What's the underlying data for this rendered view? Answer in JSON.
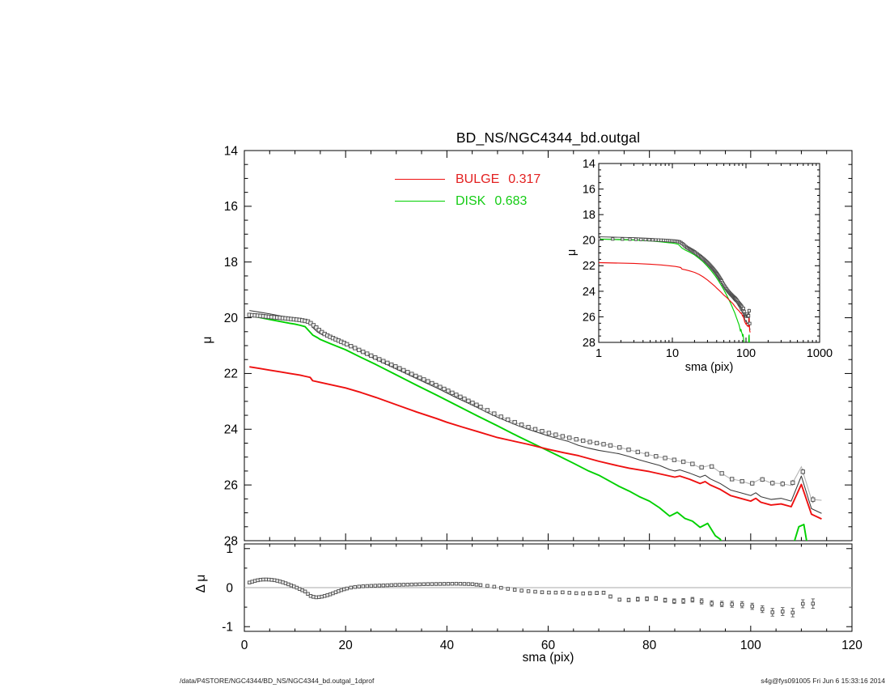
{
  "footer": {
    "left": "/data/P4STORE/NGC4344/BD_NS/NGC4344_bd.outgal_1dprof",
    "right": "s4g@fys091005  Fri Jun  6 15:33:16 2014"
  },
  "colors": {
    "bulge": "#ee1010",
    "disk": "#00d000",
    "total": "#3a3a3a",
    "marker_stroke": "#4d4d4d",
    "marker_fill": "#ececec",
    "data_line": "#b5b5b5",
    "zero_line": "#a8a8a8",
    "axis": "#000000"
  },
  "series": {
    "observed": {
      "sma": [
        1,
        3,
        5,
        7,
        9,
        11,
        12.5,
        13,
        14,
        15,
        16,
        17,
        18,
        19,
        20,
        22,
        24,
        26,
        28,
        30,
        32,
        34,
        36,
        38,
        40,
        42,
        44,
        46,
        48,
        50,
        52,
        54,
        56,
        58,
        60,
        62,
        64,
        66,
        68,
        70,
        72,
        74,
        76,
        78,
        80,
        82,
        84,
        86,
        88,
        90,
        92,
        94,
        96,
        98,
        100,
        102,
        104,
        106,
        108,
        110,
        112,
        114
      ],
      "mu": [
        19.9,
        19.93,
        19.97,
        20.0,
        20.04,
        20.08,
        20.13,
        20.18,
        20.32,
        20.48,
        20.6,
        20.69,
        20.77,
        20.85,
        20.93,
        21.1,
        21.27,
        21.44,
        21.6,
        21.76,
        21.93,
        22.1,
        22.26,
        22.43,
        22.6,
        22.78,
        22.96,
        23.14,
        23.32,
        23.5,
        23.65,
        23.79,
        23.92,
        24.03,
        24.13,
        24.22,
        24.3,
        24.38,
        24.45,
        24.51,
        24.57,
        24.65,
        24.74,
        24.83,
        24.92,
        25.0,
        25.06,
        25.15,
        25.2,
        25.38,
        25.3,
        25.55,
        25.78,
        25.85,
        25.97,
        25.78,
        25.93,
        25.95,
        26.02,
        25.35,
        26.52,
        26.55
      ]
    },
    "observed_err": {
      "sma": [
        92,
        96,
        100,
        104,
        108,
        110,
        112,
        114
      ],
      "err": [
        0.05,
        0.06,
        0.08,
        0.09,
        0.1,
        0.1,
        0.12,
        0.13
      ]
    },
    "total_model": {
      "sma": [
        1,
        3,
        5,
        7,
        9,
        11,
        12,
        13,
        13.5,
        14.5,
        15.5,
        17,
        18,
        20,
        22,
        24,
        26,
        28,
        30,
        32,
        34,
        36,
        38,
        40,
        42,
        44,
        46,
        48,
        50,
        52,
        54,
        56,
        58,
        60,
        62,
        64,
        66,
        68,
        70,
        72,
        74,
        76,
        78,
        80,
        82,
        84,
        85,
        86,
        88,
        90,
        91,
        92,
        94,
        96,
        98,
        100,
        101,
        102,
        104,
        106,
        108,
        110,
        112,
        114
      ],
      "mu": [
        19.74,
        19.8,
        19.86,
        19.93,
        20.0,
        20.06,
        20.1,
        20.16,
        20.35,
        20.52,
        20.62,
        20.7,
        20.78,
        20.95,
        21.14,
        21.32,
        21.5,
        21.67,
        21.84,
        22.01,
        22.18,
        22.35,
        22.52,
        22.7,
        22.88,
        23.05,
        23.22,
        23.4,
        23.57,
        23.72,
        23.87,
        24.0,
        24.12,
        24.24,
        24.34,
        24.44,
        24.58,
        24.68,
        24.76,
        24.82,
        24.88,
        24.98,
        25.1,
        25.2,
        25.3,
        25.45,
        25.5,
        25.46,
        25.58,
        25.72,
        25.65,
        25.78,
        25.95,
        26.18,
        26.28,
        26.38,
        26.28,
        26.42,
        26.52,
        26.48,
        26.58,
        25.68,
        26.85,
        27.02
      ]
    },
    "bulge": {
      "sma": [
        1,
        3,
        5,
        7,
        9,
        11,
        12,
        13,
        13.5,
        15,
        17,
        20,
        23,
        26,
        30,
        34,
        38,
        40,
        43,
        46,
        50,
        53,
        56,
        60,
        63,
        66,
        70,
        73,
        76,
        80,
        82,
        84,
        85,
        86,
        88,
        90,
        91,
        92,
        94,
        96,
        98,
        100,
        101,
        102,
        104,
        106,
        108,
        110,
        112,
        114
      ],
      "mu": [
        21.76,
        21.82,
        21.88,
        21.94,
        22.0,
        22.06,
        22.1,
        22.14,
        22.26,
        22.32,
        22.4,
        22.52,
        22.68,
        22.86,
        23.12,
        23.38,
        23.62,
        23.75,
        23.92,
        24.08,
        24.3,
        24.42,
        24.54,
        24.72,
        24.84,
        24.95,
        25.15,
        25.28,
        25.4,
        25.52,
        25.6,
        25.68,
        25.72,
        25.68,
        25.8,
        25.95,
        25.88,
        26.0,
        26.16,
        26.38,
        26.48,
        26.58,
        26.48,
        26.62,
        26.72,
        26.68,
        26.78,
        25.98,
        27.05,
        27.22
      ]
    },
    "disk": {
      "sma": [
        1,
        3,
        5,
        7,
        9,
        10,
        11,
        12,
        12.5,
        13.5,
        14.5,
        15,
        17,
        20,
        23,
        26,
        30,
        34,
        38,
        42,
        46,
        50,
        54,
        58,
        62,
        65,
        68,
        70,
        72,
        74,
        76,
        78,
        80,
        82,
        84,
        85.5,
        87,
        88.5,
        90,
        91.5,
        93,
        94,
        96,
        98,
        100,
        103,
        106,
        108,
        109.5,
        110.5,
        111.5,
        112.5,
        114
      ],
      "mu": [
        19.92,
        19.99,
        20.06,
        20.13,
        20.2,
        20.23,
        20.27,
        20.32,
        20.42,
        20.62,
        20.72,
        20.78,
        20.93,
        21.15,
        21.42,
        21.68,
        22.05,
        22.42,
        22.78,
        23.15,
        23.52,
        23.88,
        24.25,
        24.6,
        24.95,
        25.22,
        25.5,
        25.65,
        25.85,
        26.05,
        26.22,
        26.42,
        26.58,
        26.82,
        27.12,
        26.98,
        27.2,
        27.3,
        27.52,
        27.38,
        27.82,
        27.95,
        28.7,
        29.5,
        30.3,
        31.0,
        29.8,
        28.4,
        27.5,
        27.42,
        28.5,
        30.0,
        31.0
      ]
    },
    "residual": {
      "sma": [
        1,
        2,
        3,
        4,
        5,
        6,
        7,
        8,
        9,
        10,
        11,
        12,
        13,
        14,
        15,
        16,
        17,
        18,
        19,
        20,
        21,
        22,
        24,
        26,
        28,
        30,
        33,
        36,
        39,
        42,
        45,
        47,
        49,
        51,
        53,
        55,
        57,
        59,
        61,
        63,
        65,
        67,
        69,
        71,
        73,
        75,
        77,
        79,
        81,
        83,
        85,
        87,
        89,
        91,
        93,
        95,
        97,
        99,
        101,
        103,
        104.5,
        106,
        108,
        110,
        112,
        114
      ],
      "dmu": [
        0.13,
        0.17,
        0.2,
        0.21,
        0.205,
        0.19,
        0.16,
        0.12,
        0.07,
        0.02,
        -0.04,
        -0.1,
        -0.21,
        -0.25,
        -0.24,
        -0.21,
        -0.17,
        -0.12,
        -0.07,
        -0.03,
        0.0,
        0.02,
        0.04,
        0.05,
        0.06,
        0.07,
        0.08,
        0.09,
        0.095,
        0.1,
        0.09,
        0.06,
        0.03,
        -0.01,
        -0.05,
        -0.08,
        -0.1,
        -0.12,
        -0.13,
        -0.12,
        -0.14,
        -0.15,
        -0.14,
        -0.13,
        -0.28,
        -0.33,
        -0.3,
        -0.29,
        -0.27,
        -0.32,
        -0.35,
        -0.34,
        -0.3,
        -0.38,
        -0.42,
        -0.42,
        -0.43,
        -0.44,
        -0.5,
        -0.58,
        -0.64,
        -0.6,
        -0.68,
        -0.42,
        -0.38,
        -0.58
      ],
      "err": [
        0,
        0,
        0,
        0,
        0,
        0,
        0,
        0,
        0,
        0,
        0,
        0,
        0,
        0,
        0,
        0,
        0,
        0,
        0,
        0,
        0,
        0,
        0,
        0,
        0,
        0,
        0,
        0,
        0,
        0,
        0,
        0,
        0,
        0,
        0,
        0,
        0,
        0.03,
        0.03,
        0.03,
        0.03,
        0.04,
        0.04,
        0.04,
        0.04,
        0.04,
        0.05,
        0.05,
        0.05,
        0.05,
        0.06,
        0.06,
        0.06,
        0.07,
        0.07,
        0.07,
        0.08,
        0.08,
        0.08,
        0.09,
        0.1,
        0.1,
        0.11,
        0.1,
        0.12,
        0.13
      ]
    }
  },
  "chart_data": [
    {
      "id": "main",
      "type": "line+scatter",
      "title": "BD_NS/NGC4344_bd.outgal",
      "xlabel": "",
      "ylabel": "μ",
      "x_range": [
        0,
        120
      ],
      "y_range": [
        14,
        28
      ],
      "y_inverted": true,
      "x_ticks": [
        0,
        20,
        40,
        60,
        80,
        100,
        120
      ],
      "x_minor_step": 5,
      "y_ticks": [
        14,
        16,
        18,
        20,
        22,
        24,
        26,
        28
      ],
      "y_minor_step": 0.5,
      "grid": false,
      "legend": {
        "position": "top-center",
        "items": [
          {
            "label": "BULGE",
            "value": "0.317",
            "color": "#e32020"
          },
          {
            "label": "DISK",
            "value": "0.683",
            "color": "#15cc15"
          }
        ]
      },
      "series": [
        "observed",
        "total_model",
        "bulge",
        "disk"
      ]
    },
    {
      "id": "inset",
      "type": "line+scatter",
      "xlabel": "sma (pix)",
      "ylabel": "μ",
      "x_scale": "log",
      "x_range": [
        1,
        1000
      ],
      "y_range": [
        14,
        28
      ],
      "y_inverted": true,
      "x_ticks": [
        1,
        10,
        100,
        1000
      ],
      "y_ticks": [
        14,
        16,
        18,
        20,
        22,
        24,
        26,
        28
      ],
      "y_minor_step": 0.5,
      "grid": false,
      "series": [
        "observed",
        "total_model",
        "bulge",
        "disk"
      ]
    },
    {
      "id": "residual",
      "type": "scatter",
      "xlabel": "sma (pix)",
      "ylabel": "Δ μ",
      "x_range": [
        0,
        120
      ],
      "y_range": [
        1.12,
        -1.12
      ],
      "x_ticks": [
        0,
        20,
        40,
        60,
        80,
        100,
        120
      ],
      "x_minor_step": 5,
      "y_ticks": [
        1,
        0,
        -1
      ],
      "y_minor_step": 0.5,
      "zero_line": 0,
      "grid": false,
      "series": [
        "residual"
      ]
    }
  ]
}
